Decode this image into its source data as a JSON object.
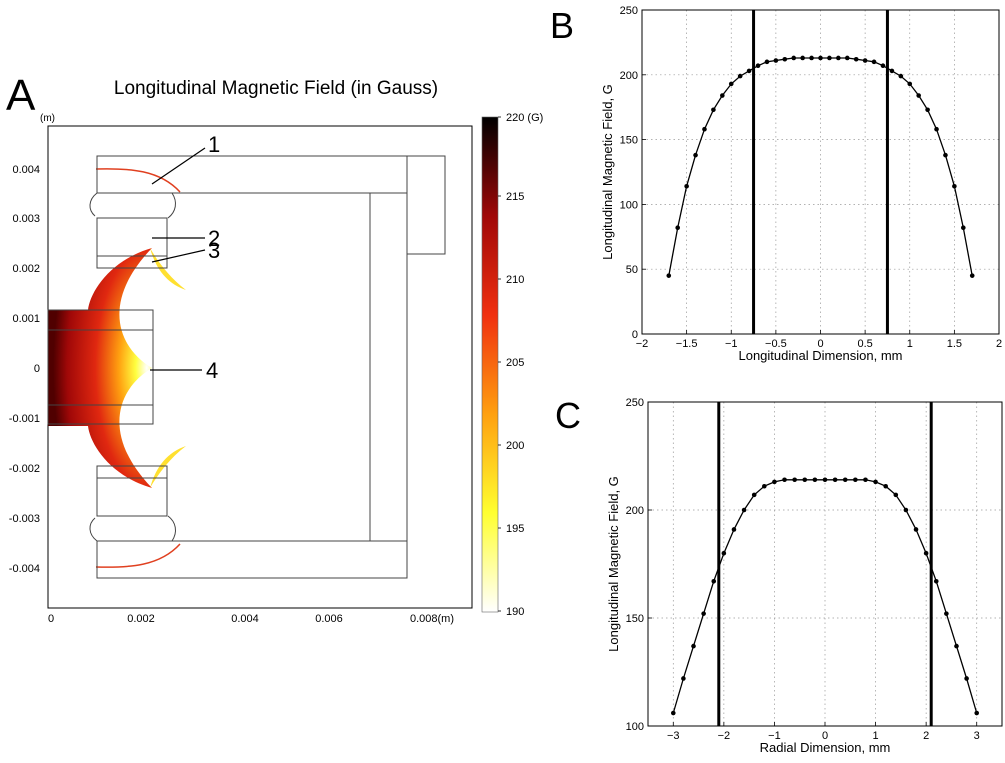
{
  "panel_labels": {
    "a": "A",
    "b": "B",
    "c": "C"
  },
  "panel_a": {
    "title": "Longitudinal Magnetic Field (in Gauss)",
    "axis_unit": "(m)",
    "x_ticks": [
      "0",
      "0.002",
      "0.004",
      "0.006",
      "0.008(m)"
    ],
    "y_ticks": [
      "0.004",
      "0.003",
      "0.002",
      "0.001",
      "0",
      "-0.001",
      "-0.002",
      "-0.003",
      "-0.004"
    ],
    "callouts": [
      "1",
      "2",
      "3",
      "4"
    ],
    "colorbar": {
      "ticks": [
        "220 (G)",
        "215",
        "210",
        "205",
        "200",
        "195",
        "190"
      ],
      "range": [
        190,
        220
      ],
      "colors": [
        "#ffffff",
        "#ffff30",
        "#ffa010",
        "#f03010",
        "#a00808",
        "#000000"
      ]
    }
  },
  "chart_data": [
    {
      "type": "line",
      "panel": "B",
      "xlabel": "Longitudinal Dimension, mm",
      "ylabel": "Longitudinal Magnetic Field, G",
      "xlim": [
        -2,
        2
      ],
      "ylim": [
        0,
        250
      ],
      "x_ticks": [
        "−2",
        "−1.5",
        "−1",
        "−0.5",
        "0",
        "0.5",
        "1",
        "1.5",
        "2"
      ],
      "y_ticks": [
        "0",
        "50",
        "100",
        "150",
        "200",
        "250"
      ],
      "grid": true,
      "vertical_lines": [
        -0.75,
        0.75
      ],
      "x": [
        -1.7,
        -1.6,
        -1.5,
        -1.4,
        -1.3,
        -1.2,
        -1.1,
        -1.0,
        -0.9,
        -0.8,
        -0.7,
        -0.6,
        -0.5,
        -0.4,
        -0.3,
        -0.2,
        -0.1,
        0.0,
        0.1,
        0.2,
        0.3,
        0.4,
        0.5,
        0.6,
        0.7,
        0.8,
        0.9,
        1.0,
        1.1,
        1.2,
        1.3,
        1.4,
        1.5,
        1.6,
        1.7
      ],
      "y": [
        45,
        82,
        114,
        138,
        158,
        173,
        184,
        193,
        199,
        203,
        207,
        210,
        211,
        212,
        213,
        213,
        213,
        213,
        213,
        213,
        213,
        212,
        211,
        210,
        207,
        203,
        199,
        193,
        184,
        173,
        158,
        138,
        114,
        82,
        45
      ]
    },
    {
      "type": "line",
      "panel": "C",
      "xlabel": "Radial Dimension, mm",
      "ylabel": "Longitudinal Magnetic Field, G",
      "xlim": [
        -3.5,
        3.5
      ],
      "ylim": [
        100,
        250
      ],
      "x_ticks": [
        "−3",
        "−2",
        "−1",
        "0",
        "1",
        "2",
        "3"
      ],
      "y_ticks": [
        "100",
        "150",
        "200",
        "250"
      ],
      "grid": true,
      "vertical_lines": [
        -2.1,
        2.1
      ],
      "x": [
        -3.0,
        -2.8,
        -2.6,
        -2.4,
        -2.2,
        -2.0,
        -1.8,
        -1.6,
        -1.4,
        -1.2,
        -1.0,
        -0.8,
        -0.6,
        -0.4,
        -0.2,
        0.0,
        0.2,
        0.4,
        0.6,
        0.8,
        1.0,
        1.2,
        1.4,
        1.6,
        1.8,
        2.0,
        2.2,
        2.4,
        2.6,
        2.8,
        3.0
      ],
      "y": [
        106,
        122,
        137,
        152,
        167,
        180,
        191,
        200,
        207,
        211,
        213,
        214,
        214,
        214,
        214,
        214,
        214,
        214,
        214,
        214,
        213,
        211,
        207,
        200,
        191,
        180,
        167,
        152,
        137,
        122,
        106
      ]
    }
  ]
}
